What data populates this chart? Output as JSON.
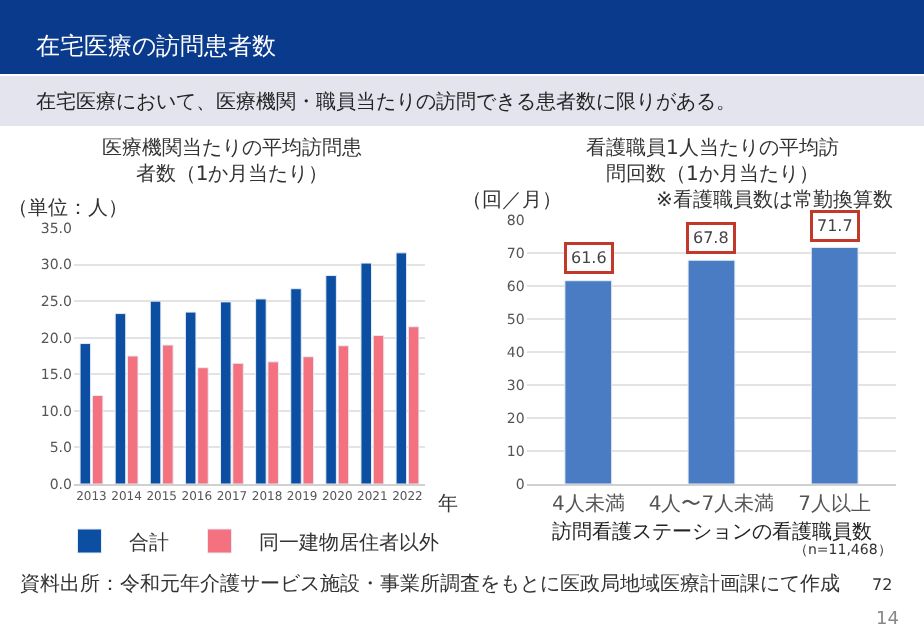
{
  "chart_data": [
    {
      "type": "bar",
      "title": "医療機関当たりの平均訪問患者数（1か月当たり）",
      "ylabel": "（単位：人）",
      "xlabel": "年",
      "annotations": [
        "在宅医療の訪問患者数",
        "在宅医療において、医療機関・職員当たりの訪問できる患者数に限りがある。"
      ],
      "categories": [
        "2013",
        "2014",
        "2015",
        "2016",
        "2017",
        "2018",
        "2019",
        "2020",
        "2021",
        "2022"
      ],
      "series": [
        {
          "name": "合計",
          "color": "#0b4ea2",
          "values": [
            19.2,
            23.3,
            25.0,
            23.5,
            24.9,
            25.3,
            26.7,
            28.5,
            30.2,
            31.6
          ]
        },
        {
          "name": "同一建物居住者以外",
          "color": "#f4717f",
          "values": [
            12.1,
            17.5,
            19.0,
            15.9,
            16.5,
            16.7,
            17.4,
            18.9,
            20.3,
            21.5
          ]
        }
      ],
      "ylim": [
        0,
        35
      ],
      "yticks": [
        {
          "value": 0,
          "label": "0.0"
        },
        {
          "value": 5,
          "label": "5.0"
        },
        {
          "value": 10,
          "label": "10.0"
        },
        {
          "value": 15,
          "label": "15.0"
        },
        {
          "value": 20,
          "label": "20.0"
        },
        {
          "value": 25,
          "label": "25.0"
        },
        {
          "value": 30,
          "label": "30.0"
        },
        {
          "value": 35,
          "label": "35.0"
        }
      ],
      "grid": "y",
      "legend": "bottom"
    },
    {
      "type": "bar",
      "title": "看護職員1人当たりの平均訪問回数（1か月当たり）",
      "subtitle": "※看護職員数は常勤換算数",
      "ylabel": "（回／月）",
      "xlabel": "訪問看護ステーションの看護職員数",
      "annotations": [
        "（n=11,468）",
        "資料出所：令和元年介護サービス施設・事業所調査をもとに医政局地域医療計画課にて作成",
        "72",
        "14"
      ],
      "categories": [
        "4人未満",
        "4人〜7人未満",
        "7人以上"
      ],
      "values": [
        61.6,
        67.8,
        71.7
      ],
      "color": "#4a7cc4",
      "data_labels": true,
      "ylim": [
        0,
        80
      ],
      "yticks": [
        0,
        10,
        20,
        30,
        40,
        50,
        60,
        70,
        80
      ],
      "grid": "y"
    }
  ]
}
